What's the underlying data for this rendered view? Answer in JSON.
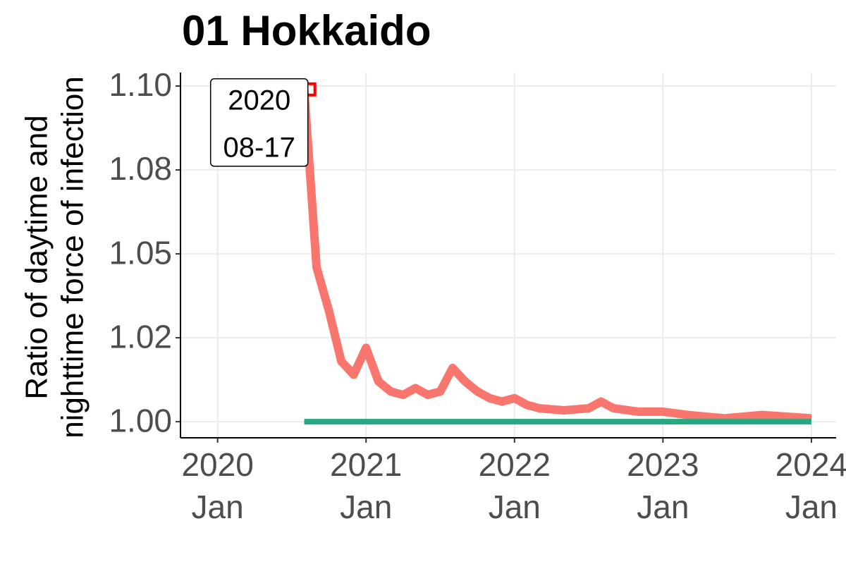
{
  "chart_data": {
    "type": "line",
    "title": "01 Hokkaido",
    "y_label": [
      "Ratio of daytime and",
      "nighttime force of infection"
    ],
    "series": [
      {
        "color": "#F8766D",
        "x": [
          "2020-08",
          "2020-09",
          "2020-10",
          "2020-11",
          "2020-12",
          "2021-01",
          "2021-02",
          "2021-03",
          "2021-04",
          "2021-05",
          "2021-06",
          "2021-07",
          "2021-08",
          "2021-09",
          "2021-10",
          "2021-11",
          "2021-12",
          "2022-01",
          "2022-02",
          "2022-03",
          "2022-05",
          "2022-07",
          "2022-08",
          "2022-09",
          "2022-11",
          "2023-01",
          "2023-03",
          "2023-06",
          "2023-09",
          "2024-01"
        ],
        "values": [
          1.099,
          1.046,
          1.033,
          1.018,
          1.014,
          1.022,
          1.012,
          1.009,
          1.008,
          1.01,
          1.008,
          1.009,
          1.016,
          1.012,
          1.009,
          1.007,
          1.006,
          1.007,
          1.005,
          1.004,
          1.0034,
          1.004,
          1.006,
          1.004,
          1.003,
          1.003,
          1.002,
          1.001,
          1.002,
          1.001
        ]
      },
      {
        "color": "#26A882",
        "x": [
          "2020-08",
          "2024-01"
        ],
        "values": [
          1.0,
          1.0
        ]
      }
    ],
    "highlight": {
      "x": "2020-08-17",
      "y": 1.099,
      "color": "#FF0000",
      "label": [
        "2020",
        "08-17"
      ]
    },
    "xlim": [
      "2019-10",
      "2024-03"
    ],
    "xticks": [
      {
        "value": "2020-01",
        "label": [
          "2020",
          "Jan"
        ]
      },
      {
        "value": "2021-01",
        "label": [
          "2021",
          "Jan"
        ]
      },
      {
        "value": "2022-01",
        "label": [
          "2022",
          "Jan"
        ]
      },
      {
        "value": "2023-01",
        "label": [
          "2023",
          "Jan"
        ]
      },
      {
        "value": "2024-01",
        "label": [
          "2024",
          "Jan"
        ]
      }
    ],
    "ylim": [
      0.9952,
      1.104
    ],
    "yticks": [
      {
        "value": 1.0,
        "label": "1.00"
      },
      {
        "value": 1.025,
        "label": "1.02"
      },
      {
        "value": 1.05,
        "label": "1.05"
      },
      {
        "value": 1.075,
        "label": "1.08"
      },
      {
        "value": 1.1,
        "label": "1.10"
      }
    ],
    "grid": true
  }
}
